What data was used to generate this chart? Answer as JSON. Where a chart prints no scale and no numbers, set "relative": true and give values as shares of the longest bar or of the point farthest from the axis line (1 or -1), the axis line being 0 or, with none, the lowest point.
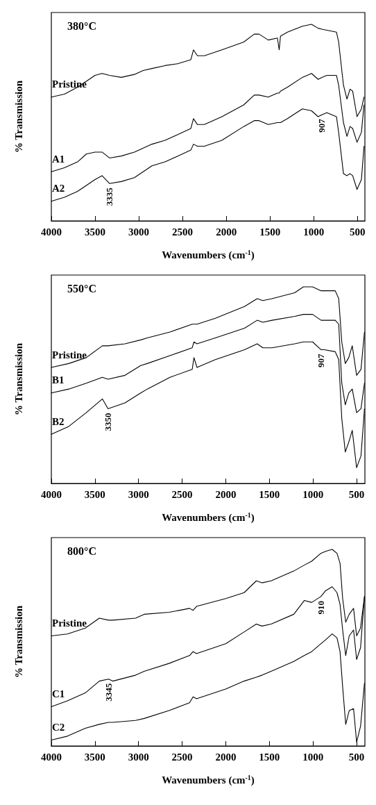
{
  "chart_data": [
    {
      "type": "line",
      "title": "380°C",
      "xlabel": "Wavenumbers (cm$^{-1}$)",
      "ylabel": "% Transmission",
      "relative": true,
      "grid": false,
      "legend": false,
      "marker": "none",
      "line_style": "solid",
      "xlim": [
        4000,
        415
      ],
      "xticks": [
        4000,
        3500,
        3000,
        2500,
        2000,
        1500,
        1000,
        500
      ],
      "x": [
        4000,
        3850,
        3700,
        3600,
        3500,
        3420,
        3335,
        3200,
        3050,
        2950,
        2850,
        2700,
        2550,
        2405,
        2375,
        2330,
        2250,
        2050,
        1800,
        1680,
        1625,
        1520,
        1415,
        1395,
        1380,
        1300,
        1130,
        1025,
        950,
        907,
        850,
        740,
        715,
        660,
        620,
        585,
        555,
        505,
        455,
        425
      ],
      "series": [
        {
          "name": "Pristine",
          "color": "#000000",
          "values": [
            0.63,
            0.645,
            0.68,
            0.71,
            0.74,
            0.75,
            0.74,
            0.73,
            0.745,
            0.765,
            0.775,
            0.79,
            0.8,
            0.82,
            0.87,
            0.84,
            0.84,
            0.87,
            0.91,
            0.95,
            0.95,
            0.92,
            0.93,
            0.87,
            0.94,
            0.96,
            0.99,
            1.0,
            0.98,
            0.975,
            0.97,
            0.96,
            0.91,
            0.69,
            0.62,
            0.67,
            0.66,
            0.53,
            0.57,
            0.63
          ]
        },
        {
          "name": "A1",
          "color": "#000000",
          "values": [
            0.25,
            0.27,
            0.3,
            0.34,
            0.35,
            0.35,
            0.32,
            0.33,
            0.35,
            0.37,
            0.39,
            0.41,
            0.44,
            0.47,
            0.52,
            0.49,
            0.49,
            0.53,
            0.59,
            0.64,
            0.64,
            0.63,
            0.65,
            0.65,
            0.66,
            0.68,
            0.73,
            0.75,
            0.72,
            0.73,
            0.74,
            0.74,
            0.69,
            0.5,
            0.43,
            0.48,
            0.47,
            0.4,
            0.45,
            0.59
          ]
        },
        {
          "name": "A2",
          "color": "#000000",
          "values": [
            0.1,
            0.12,
            0.15,
            0.18,
            0.21,
            0.23,
            0.19,
            0.2,
            0.22,
            0.25,
            0.28,
            0.3,
            0.33,
            0.36,
            0.39,
            0.38,
            0.38,
            0.41,
            0.48,
            0.51,
            0.51,
            0.49,
            0.5,
            0.5,
            0.5,
            0.52,
            0.57,
            0.56,
            0.53,
            0.54,
            0.55,
            0.53,
            0.45,
            0.24,
            0.23,
            0.24,
            0.23,
            0.16,
            0.21,
            0.38
          ]
        }
      ],
      "annotations": [
        {
          "text": "3335",
          "x": 3335,
          "y": 0.19
        },
        {
          "text": "907",
          "x": 907,
          "y": 0.54
        }
      ]
    },
    {
      "type": "line",
      "title": "550°C",
      "xlabel": "Wavenumbers (cm$^{-1}$)",
      "ylabel": "% Transmission",
      "relative": true,
      "grid": false,
      "legend": false,
      "marker": "none",
      "line_style": "solid",
      "xlim": [
        4000,
        405
      ],
      "xticks": [
        4000,
        3500,
        3000,
        2500,
        2000,
        1500,
        1000,
        500
      ],
      "x": [
        4000,
        3800,
        3600,
        3415,
        3350,
        3155,
        2975,
        2900,
        2640,
        2385,
        2365,
        2330,
        2120,
        1785,
        1640,
        1575,
        1470,
        1210,
        1110,
        1005,
        907,
        870,
        745,
        705,
        670,
        630,
        590,
        550,
        500,
        450,
        410
      ],
      "series": [
        {
          "name": "Pristine",
          "color": "#000000",
          "values": [
            0.59,
            0.61,
            0.64,
            0.7,
            0.7,
            0.71,
            0.73,
            0.74,
            0.77,
            0.81,
            0.81,
            0.81,
            0.84,
            0.9,
            0.94,
            0.93,
            0.94,
            0.97,
            1.0,
            1.0,
            0.98,
            0.98,
            0.98,
            0.94,
            0.72,
            0.61,
            0.64,
            0.7,
            0.55,
            0.58,
            0.77
          ]
        },
        {
          "name": "B1",
          "color": "#000000",
          "values": [
            0.46,
            0.48,
            0.51,
            0.54,
            0.53,
            0.55,
            0.6,
            0.61,
            0.65,
            0.69,
            0.72,
            0.71,
            0.74,
            0.79,
            0.83,
            0.82,
            0.83,
            0.85,
            0.86,
            0.86,
            0.83,
            0.83,
            0.83,
            0.81,
            0.51,
            0.4,
            0.46,
            0.48,
            0.36,
            0.38,
            0.51
          ]
        },
        {
          "name": "B2",
          "color": "#000000",
          "values": [
            0.25,
            0.29,
            0.36,
            0.43,
            0.38,
            0.41,
            0.46,
            0.48,
            0.54,
            0.58,
            0.64,
            0.59,
            0.63,
            0.68,
            0.71,
            0.69,
            0.69,
            0.71,
            0.72,
            0.72,
            0.68,
            0.68,
            0.67,
            0.63,
            0.33,
            0.16,
            0.21,
            0.27,
            0.08,
            0.14,
            0.38
          ]
        }
      ],
      "annotations": [
        {
          "text": "3350",
          "x": 3350,
          "y": 0.38
        },
        {
          "text": "907",
          "x": 907,
          "y": 0.68
        }
      ]
    },
    {
      "type": "line",
      "title": "800°C",
      "xlabel": "Wavenumbers (cm$^{-1}$)",
      "ylabel": "% Transmission",
      "relative": true,
      "grid": false,
      "legend": false,
      "marker": "none",
      "line_style": "solid",
      "xlim": [
        4000,
        405
      ],
      "xticks": [
        4000,
        3500,
        3000,
        2500,
        2000,
        1500,
        1000,
        500
      ],
      "x": [
        4000,
        3815,
        3610,
        3450,
        3345,
        3295,
        3035,
        2935,
        2650,
        2415,
        2375,
        2335,
        2000,
        1790,
        1650,
        1585,
        1480,
        1220,
        1100,
        1015,
        910,
        855,
        780,
        725,
        690,
        660,
        625,
        585,
        535,
        500,
        455,
        410
      ],
      "series": [
        {
          "name": "Pristine",
          "color": "#000000",
          "values": [
            0.56,
            0.57,
            0.6,
            0.65,
            0.64,
            0.64,
            0.65,
            0.67,
            0.68,
            0.7,
            0.69,
            0.71,
            0.75,
            0.78,
            0.84,
            0.83,
            0.84,
            0.89,
            0.92,
            0.94,
            0.98,
            0.99,
            1.0,
            0.98,
            0.93,
            0.75,
            0.63,
            0.67,
            0.7,
            0.56,
            0.6,
            0.76
          ]
        },
        {
          "name": "C1",
          "color": "#000000",
          "values": [
            0.2,
            0.23,
            0.27,
            0.33,
            0.34,
            0.33,
            0.36,
            0.38,
            0.42,
            0.46,
            0.48,
            0.47,
            0.52,
            0.58,
            0.62,
            0.61,
            0.62,
            0.67,
            0.74,
            0.73,
            0.76,
            0.79,
            0.81,
            0.78,
            0.72,
            0.59,
            0.46,
            0.56,
            0.59,
            0.44,
            0.5,
            0.76
          ]
        },
        {
          "name": "C2",
          "color": "#000000",
          "values": [
            0.03,
            0.05,
            0.09,
            0.11,
            0.12,
            0.12,
            0.13,
            0.14,
            0.18,
            0.22,
            0.25,
            0.24,
            0.29,
            0.33,
            0.35,
            0.36,
            0.38,
            0.43,
            0.46,
            0.48,
            0.52,
            0.54,
            0.57,
            0.55,
            0.48,
            0.3,
            0.11,
            0.18,
            0.19,
            0.02,
            0.1,
            0.32
          ]
        }
      ],
      "annotations": [
        {
          "text": "3345",
          "x": 3345,
          "y": 0.34
        },
        {
          "text": "910",
          "x": 910,
          "y": 0.76
        }
      ]
    }
  ]
}
